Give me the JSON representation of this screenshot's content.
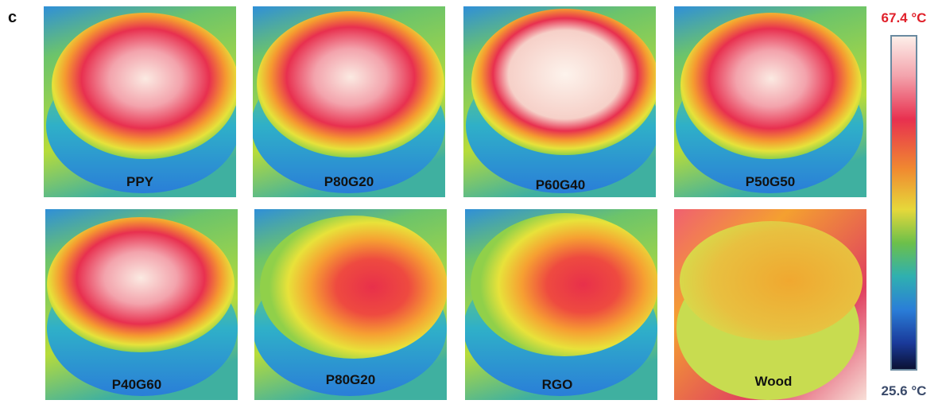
{
  "panel_label": "c",
  "images": [
    {
      "label": "PPY"
    },
    {
      "label": "P80G20"
    },
    {
      "label": "P60G40"
    },
    {
      "label": "P50G50"
    },
    {
      "label": "P40G60"
    },
    {
      "label": "P80G20"
    },
    {
      "label": "RGO"
    },
    {
      "label": "Wood"
    }
  ],
  "colorbar": {
    "max_label": "67.4 °C",
    "min_label": "25.6 °C"
  }
}
